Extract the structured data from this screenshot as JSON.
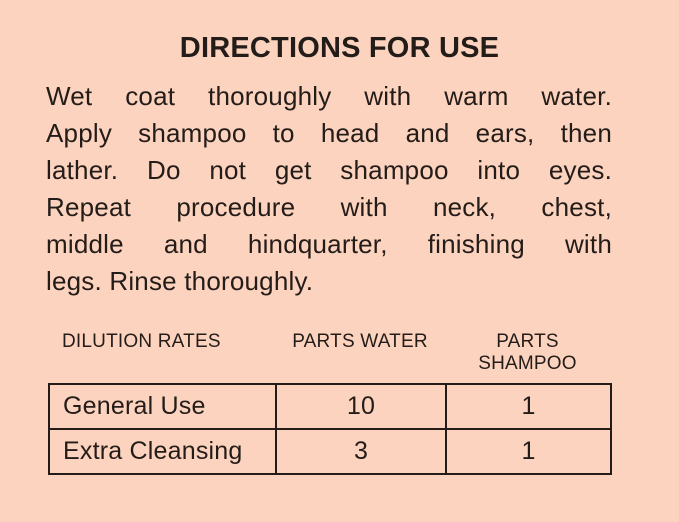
{
  "colors": {
    "background": "#fcd3be",
    "text": "#241c18",
    "table_border": "#241c18"
  },
  "title": "DIRECTIONS FOR USE",
  "directions": {
    "full_text": "Wet coat thoroughly with warm water. Apply shampoo to head and ears, then lather. Do not get shampoo into eyes. Repeat procedure with neck, chest, middle and hindquarter, finishing with legs. Rinse thoroughly.",
    "lines": [
      "Wet coat thoroughly with warm water.",
      "Apply shampoo to head and ears, then",
      "lather. Do not get shampoo into eyes.",
      "Repeat procedure with neck, chest,",
      "middle and hindquarter, finishing with",
      "legs. Rinse thoroughly."
    ]
  },
  "dilution_table": {
    "section_label": "DILUTION RATES",
    "column_headers": [
      "PARTS WATER",
      "PARTS SHAMPOO"
    ],
    "rows": [
      {
        "label": "General Use",
        "parts_water": "10",
        "parts_shampoo": "1"
      },
      {
        "label": "Extra Cleansing",
        "parts_water": "3",
        "parts_shampoo": "1"
      }
    ]
  }
}
